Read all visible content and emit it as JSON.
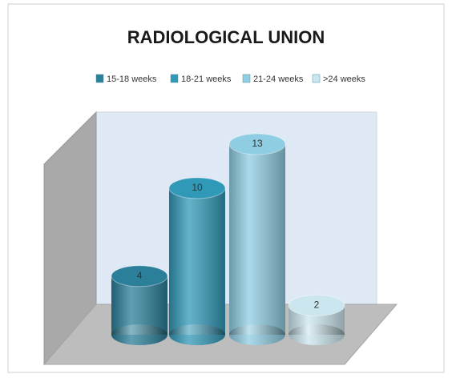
{
  "chart_data": {
    "type": "bar",
    "title": "RADIOLOGICAL UNION",
    "series": [
      {
        "name": "15-18 weeks",
        "color": "#2b7f99",
        "values": [
          4
        ]
      },
      {
        "name": "18-21 weeks",
        "color": "#3199b8",
        "values": [
          10
        ]
      },
      {
        "name": "21-24 weeks",
        "color": "#8fcde2",
        "values": [
          13
        ]
      },
      {
        "name": ">24 weeks",
        "color": "#cbe6ee",
        "values": [
          2
        ]
      }
    ],
    "legend": "top"
  }
}
